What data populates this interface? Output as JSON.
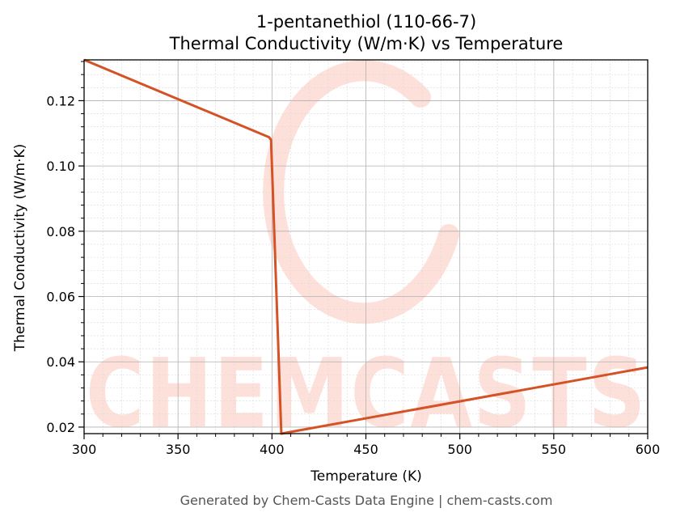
{
  "chart_data": {
    "type": "line",
    "title": "1-pentanethiol (110-66-7)",
    "subtitle": "Thermal Conductivity (W/m·K) vs Temperature",
    "xlabel": "Temperature (K)",
    "ylabel": "Thermal Conductivity (W/m·K)",
    "xlim": [
      300,
      600
    ],
    "ylim": [
      0.018,
      0.1325
    ],
    "xticks": [
      300,
      350,
      400,
      450,
      500,
      550,
      600
    ],
    "xtick_labels": [
      "300",
      "350",
      "400",
      "450",
      "500",
      "550",
      "600"
    ],
    "yticks": [
      0.02,
      0.04,
      0.06,
      0.08,
      0.1,
      0.12
    ],
    "ytick_labels": [
      "0.02",
      "0.04",
      "0.06",
      "0.08",
      "0.10",
      "0.12"
    ],
    "grid": true,
    "legend": "none",
    "series": [
      {
        "color": "#d45226",
        "x": [
          300,
          398.5,
          399.5,
          405,
          600
        ],
        "y": [
          0.1325,
          0.1088,
          0.108,
          0.018,
          0.0383
        ]
      }
    ]
  },
  "watermark": {
    "text": "CHEMCASTS",
    "color": "#fde0da"
  },
  "footer": "Generated by Chem-Casts Data Engine | chem-casts.com"
}
